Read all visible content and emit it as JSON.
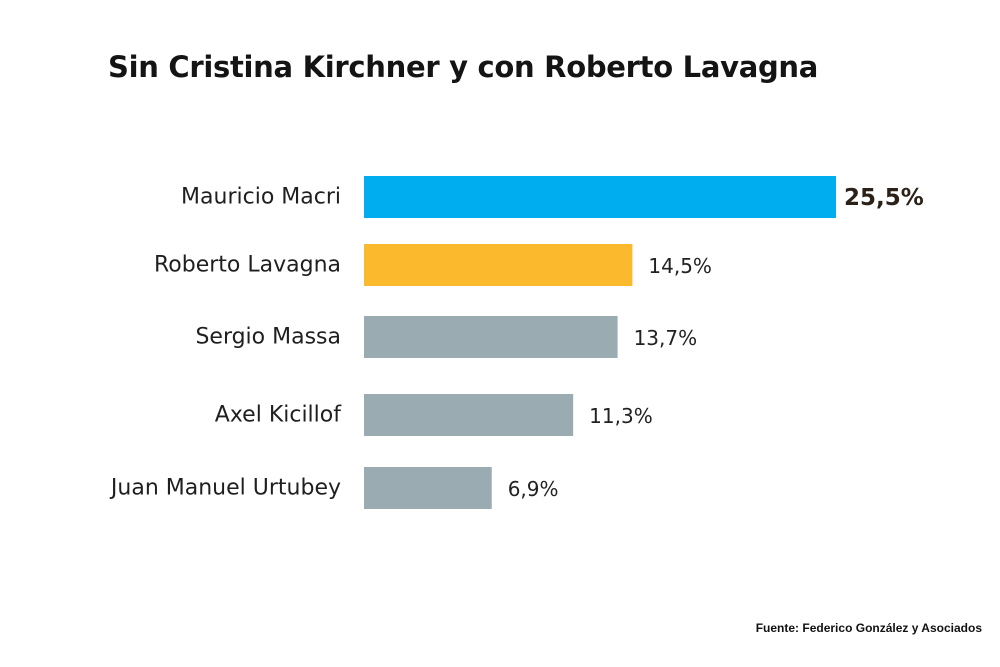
{
  "chart_data": {
    "type": "bar",
    "orientation": "horizontal",
    "title": "Sin Cristina Kirchner y con Roberto Lavagna",
    "categories": [
      "Mauricio Macri",
      "Roberto Lavagna",
      "Sergio Massa",
      "Axel Kicillof",
      "Juan Manuel Urtubey"
    ],
    "values": [
      25.5,
      14.5,
      13.7,
      11.3,
      6.9
    ],
    "value_labels": [
      "25,5%",
      "14,5%",
      "13,7%",
      "11,3%",
      "6,9%"
    ],
    "colors": [
      "#00aeef",
      "#fbb92e",
      "#9aabb2",
      "#9aabb2",
      "#9aabb2"
    ],
    "xlabel": "",
    "ylabel": "",
    "xlim": [
      0,
      25.5
    ],
    "grid": false,
    "legend": "none"
  },
  "source": "Fuente: Federico González y Asociados"
}
